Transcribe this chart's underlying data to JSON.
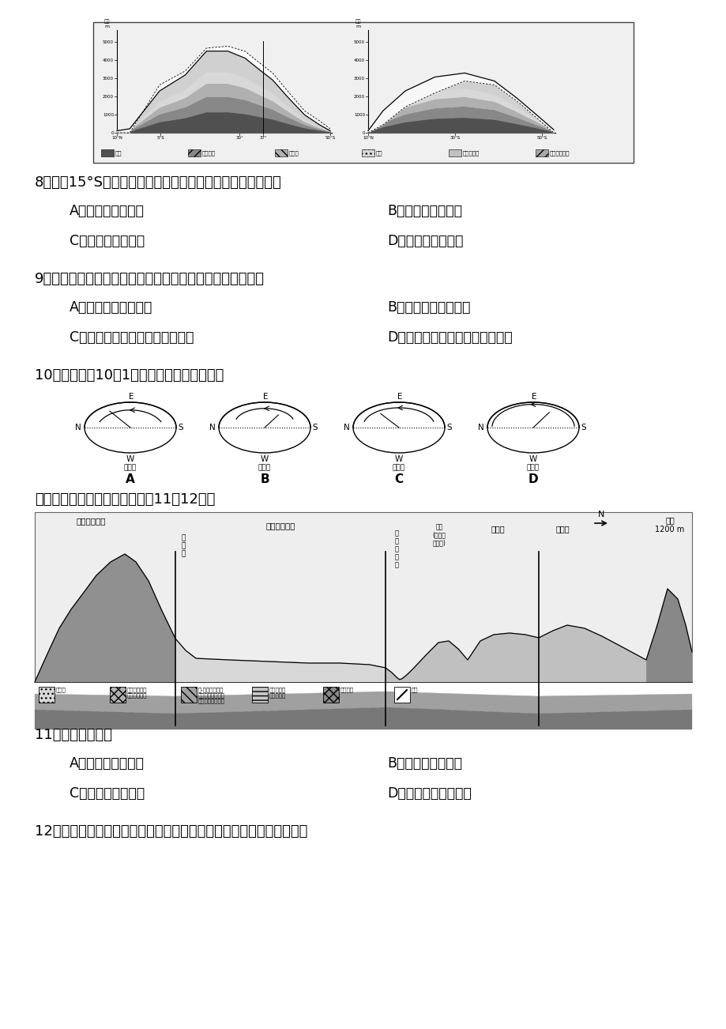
{
  "bg_color": "#ffffff",
  "page_width": 9.2,
  "page_height": 13.02,
  "q8_text": "8．关于15°S山脉东、西两坡雪线高低及成因，叙述正确的是",
  "q8_A": "A．东坡高，气温高",
  "q8_B": "B．东坡低，降水少",
  "q8_C": "C．西坡低，气温低",
  "q8_D": "D．西坡高，降水少",
  "q9_text": "9．山脉南段基带自然景观的东西差异，体现了陆地自然带的",
  "q9_A": "A．垂直地域分异规律",
  "q9_B": "B．非地带性分异规律",
  "q9_C": "C．由赤道向两极的地域分异规律",
  "q9_D": "D．由沿海向内陆的地域分异规律",
  "q10_text": "10．该天文台10月1日可以看到的太阳运动是",
  "intro_text": "读我国某区域地质剪面图，完成11～12题。",
  "q11_text": "11．「北山」属于",
  "q11_A": "A．背斜形成覆盖山",
  "q11_B": "B．向斜形成覆盖山",
  "q11_C": "C．断层形成断块山",
  "q11_D": "D．岩浆噴发形成火山",
  "q12_text": "12．图中「库姆塔格沙漠」与「低丘」所在地，相同的地质形成过程是"
}
